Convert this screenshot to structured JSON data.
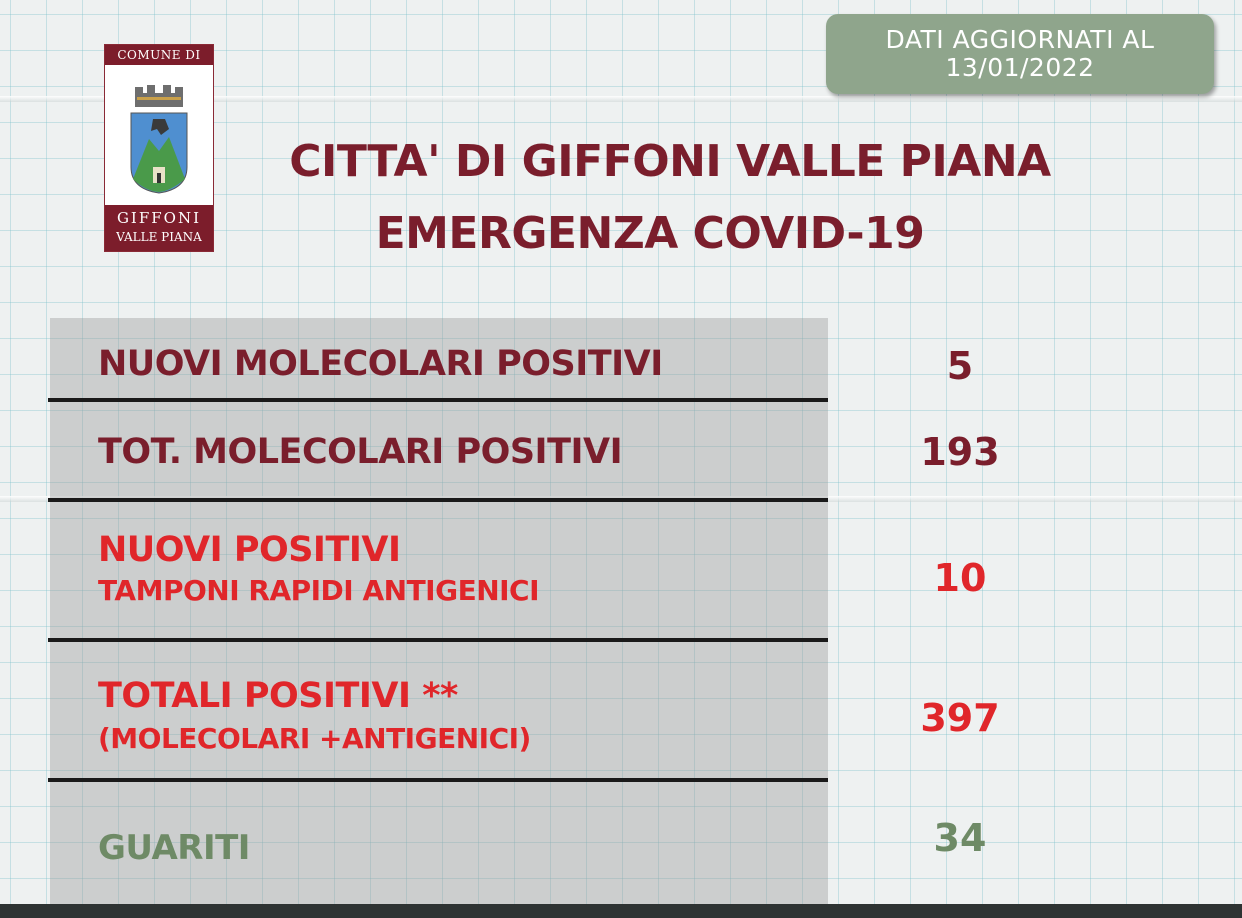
{
  "date_badge": {
    "line1": "DATI AGGIORNATI AL",
    "line2": "13/01/2022"
  },
  "logo": {
    "top_text": "COMUNE DI",
    "bottom_line1": "GIFFONI",
    "bottom_line2": "VALLE PIANA"
  },
  "header": {
    "title_line1": "CITTA' DI GIFFONI VALLE PIANA",
    "title_line2": "EMERGENZA COVID-19"
  },
  "rows": [
    {
      "label": "NUOVI MOLECOLARI POSITIVI",
      "value": "5"
    },
    {
      "label": "TOT. MOLECOLARI POSITIVI",
      "value": "193"
    },
    {
      "label": "NUOVI POSITIVI",
      "sublabel": "TAMPONI RAPIDI ANTIGENICI",
      "value": "10"
    },
    {
      "label": "TOTALI POSITIVI **",
      "sublabel": "(MOLECOLARI +ANTIGENICI)",
      "value": "397"
    },
    {
      "label": "GUARITI",
      "value": "34"
    }
  ],
  "colors": {
    "maroon": "#7a1e2c",
    "red": "#e0262a",
    "green": "#6e8a66",
    "badge": "#8fa58c"
  }
}
